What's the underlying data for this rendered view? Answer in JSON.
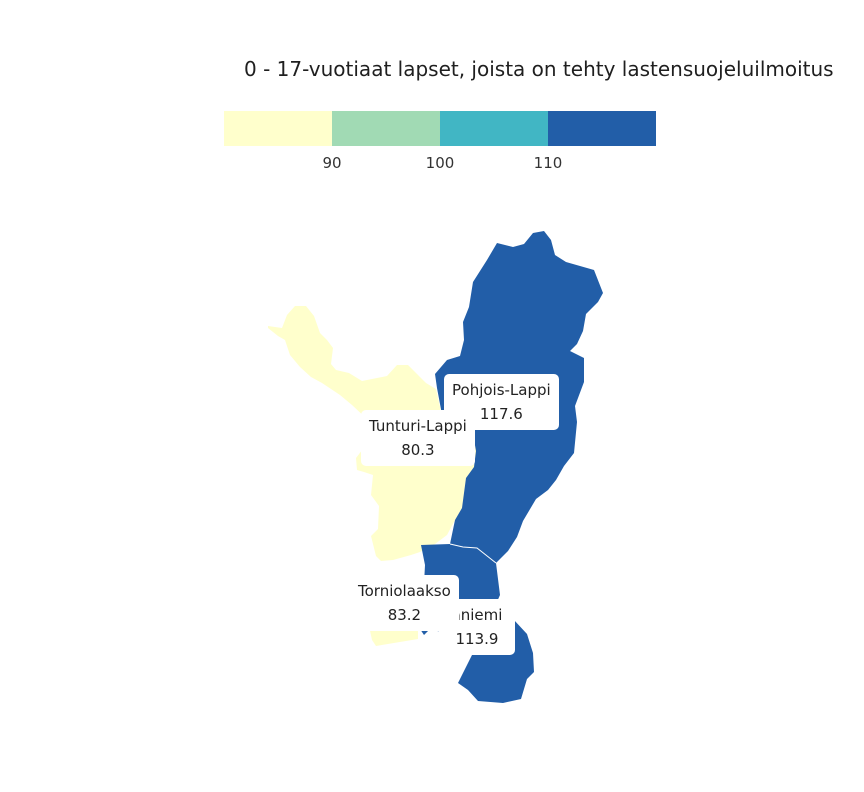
{
  "title": "0 - 17-vuotiaat lapset, joista on tehty lastensuojeluilmoitus",
  "legend": {
    "colors": [
      "#ffffcc",
      "#a1dab4",
      "#41b6c4",
      "#225ea8"
    ],
    "ticks": [
      "90",
      "100",
      "110"
    ]
  },
  "chart_data": {
    "type": "choropleth",
    "title": "0 - 17-vuotiaat lapset, joista on tehty lastensuojeluilmoitus",
    "breaks": [
      90,
      100,
      110
    ],
    "regions": [
      {
        "name": "Pohjois-Lappi",
        "value": 117.6,
        "color": "#225ea8"
      },
      {
        "name": "Tunturi-Lappi",
        "value": 80.3,
        "color": "#ffffcc"
      },
      {
        "name": "Torniolaakso",
        "value": 83.2,
        "color": "#ffffcc"
      },
      {
        "name": "Rovaniemi",
        "value": 113.9,
        "color": "#225ea8"
      }
    ]
  },
  "labels": {
    "pohjois": {
      "name": "Pohjois-Lappi",
      "value": "117.6"
    },
    "tunturi": {
      "name": "Tunturi-Lappi",
      "value": "80.3"
    },
    "tornio": {
      "name": "Torniolaakso",
      "value": "83.2"
    },
    "rovaniemi": {
      "name": "aniemi",
      "value": "113.9"
    }
  }
}
